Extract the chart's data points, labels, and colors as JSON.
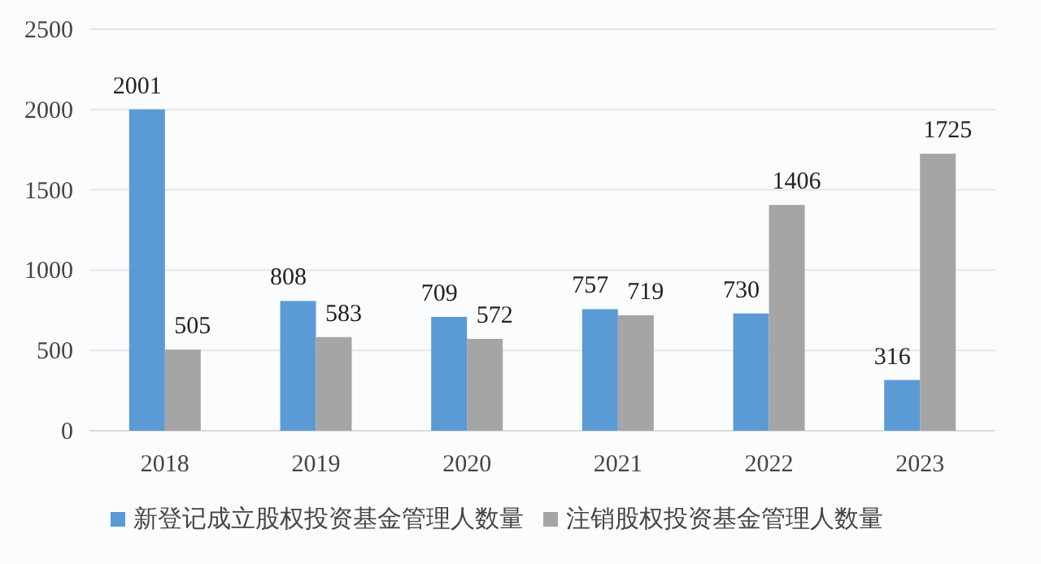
{
  "chart_data": {
    "type": "bar",
    "categories": [
      "2018",
      "2019",
      "2020",
      "2021",
      "2022",
      "2023"
    ],
    "series": [
      {
        "name": "新登记成立股权投资基金管理人数量",
        "color": "#5b9bd5",
        "values": [
          2001,
          808,
          709,
          757,
          730,
          316
        ]
      },
      {
        "name": "注销股权投资基金管理人数量",
        "color": "#a5a5a5",
        "values": [
          505,
          583,
          572,
          719,
          1406,
          1725
        ]
      }
    ],
    "ylim": [
      0,
      2500
    ],
    "yticks": [
      0,
      500,
      1000,
      1500,
      2000,
      2500
    ],
    "grid": "y",
    "legend": "bottom",
    "data_labels": true
  }
}
